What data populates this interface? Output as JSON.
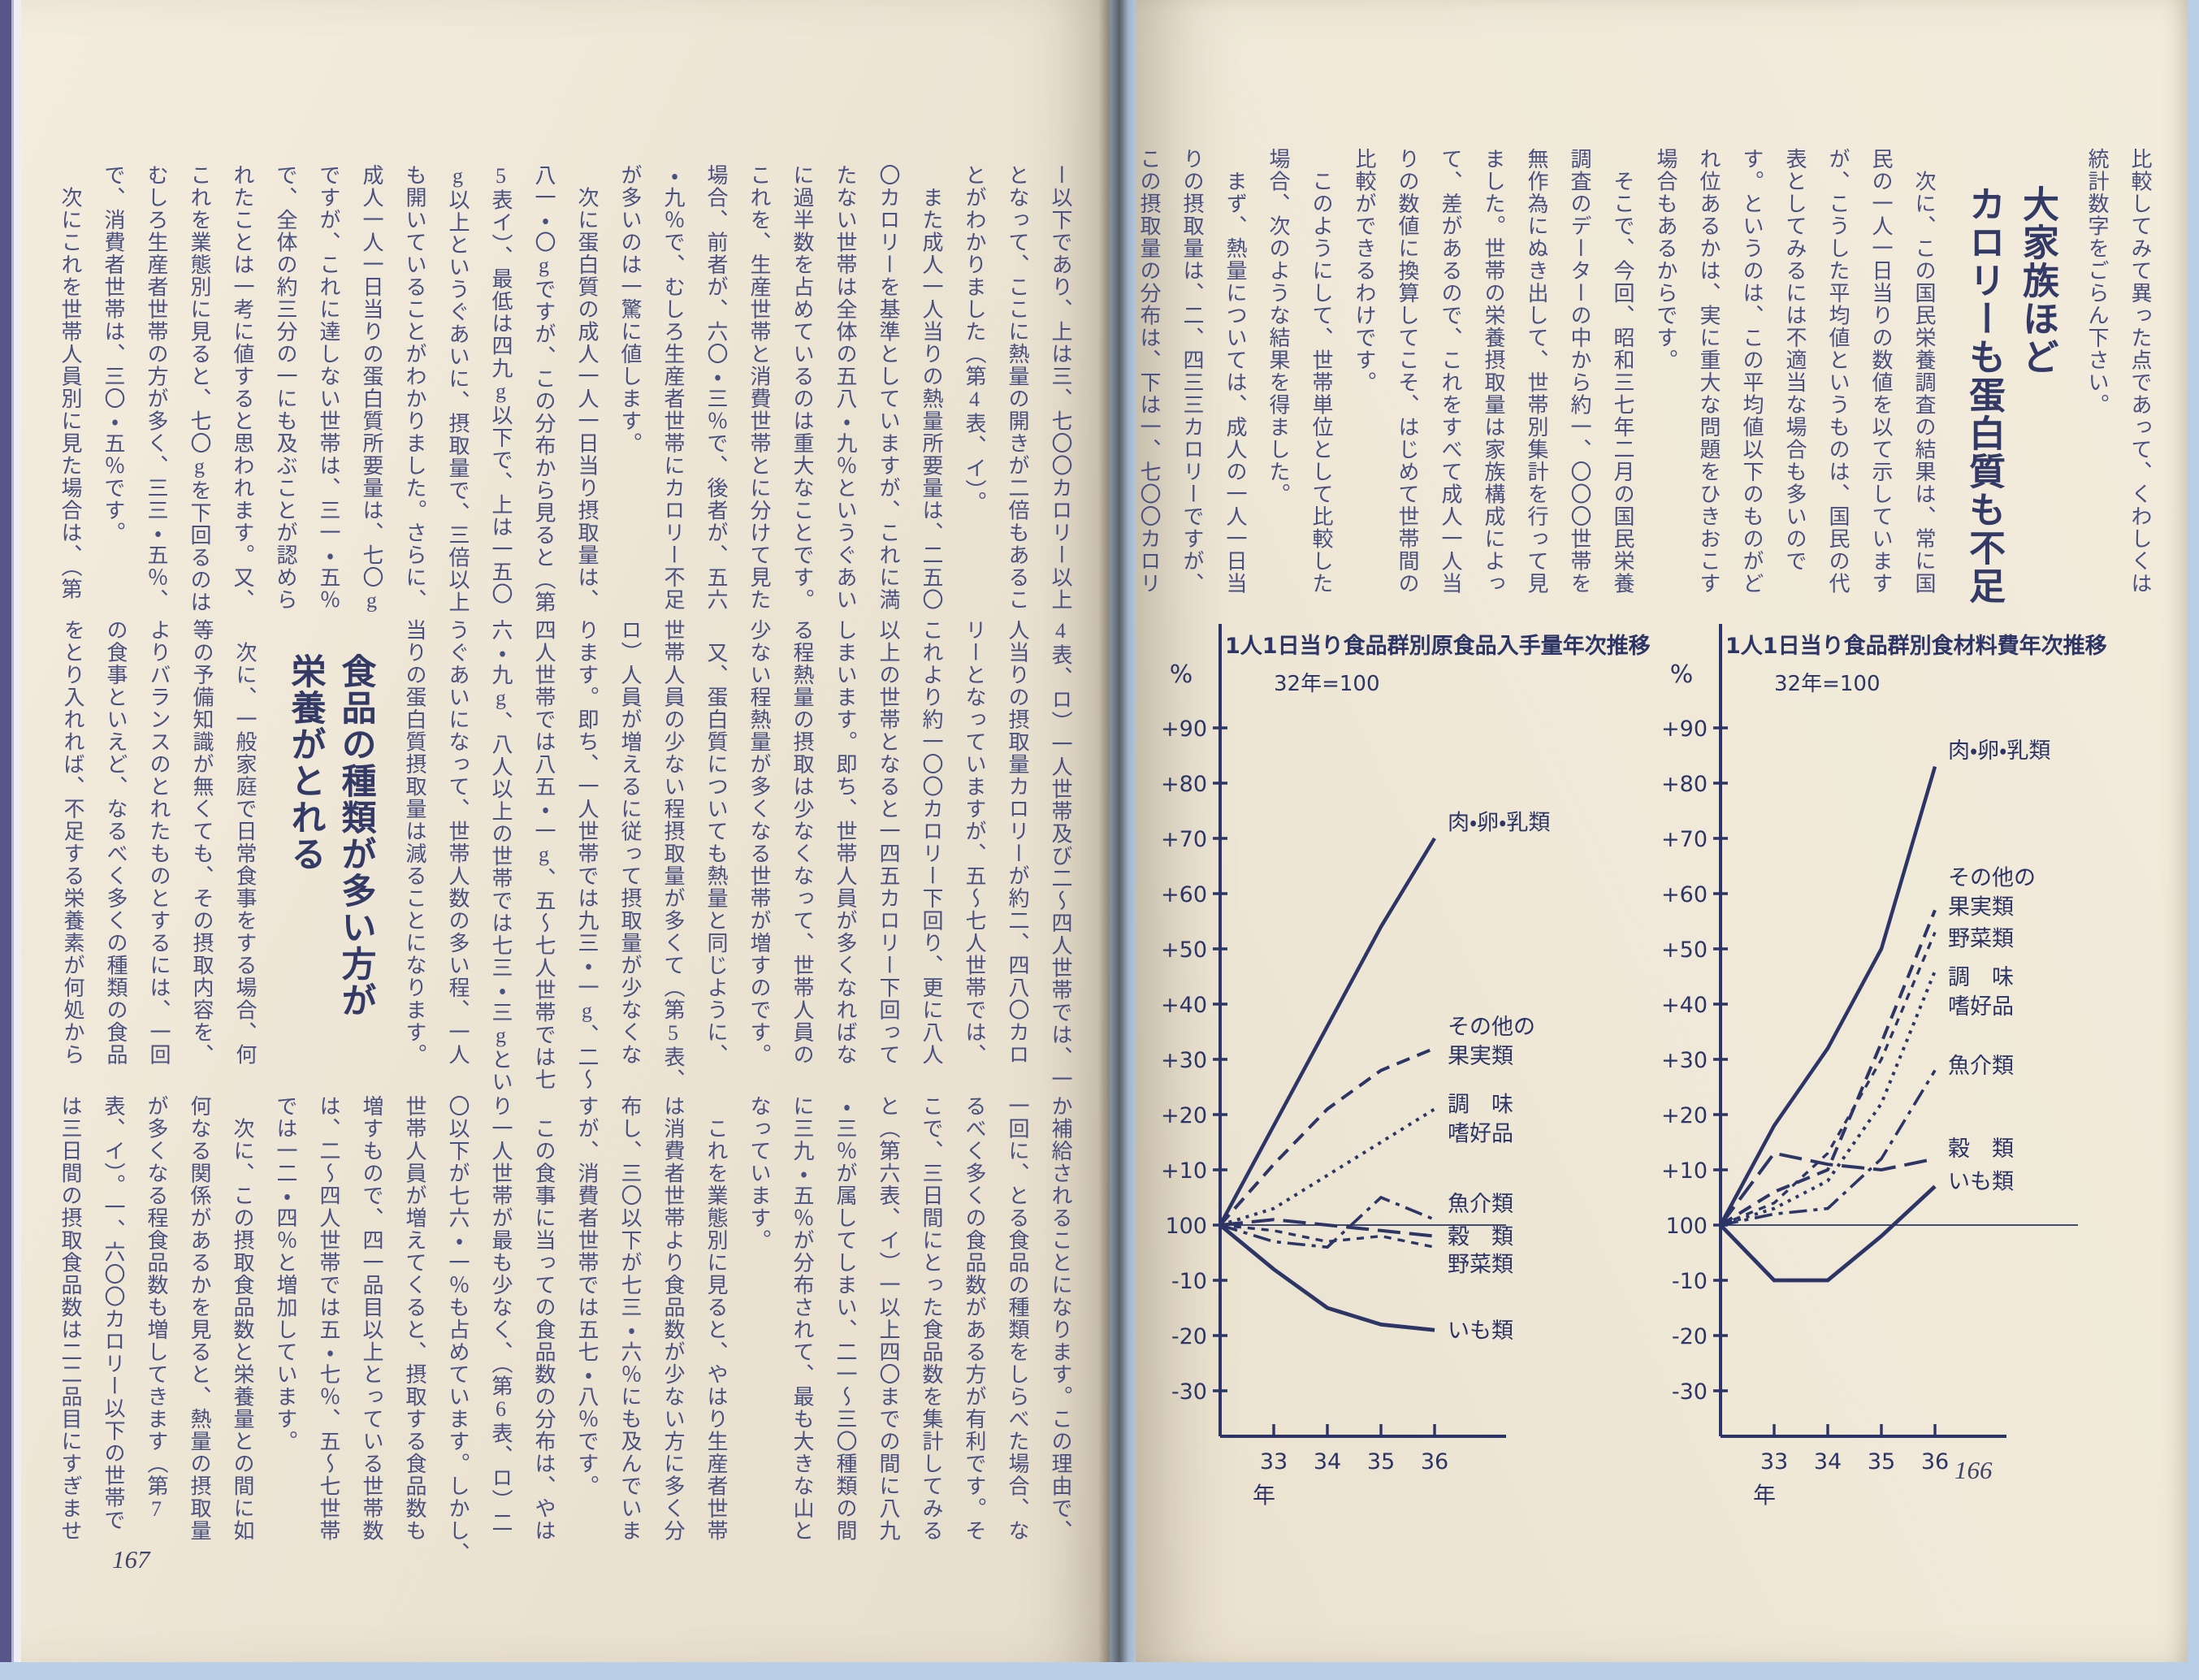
{
  "colors": {
    "paper": "#efe7d6",
    "ink_text": "#4a5181",
    "ink_heading": "#333a66",
    "ink_chart": "#2c3566",
    "backdrop_blue": "#b9cfe7",
    "spine_indigo": "#57568b"
  },
  "right_page": {
    "page_number": "166",
    "pre_columns": [
      "比較してみて異った点であって、くわしくは",
      "統計数字をごらん下さい。"
    ],
    "heading_lines": [
      "大家族ほど",
      "カロリーも蛋白質も不足"
    ],
    "post_columns": [
      "　次に、この国民栄養調査の結果は、常に国",
      "民の一人一日当りの数値を以て示しています",
      "が、こうした平均値というものは、国民の代",
      "表としてみるには不適当な場合も多いので",
      "す。というのは、この平均値以下のものがど",
      "れ位あるかは、実に重大な問題をひきおこす",
      "場合もあるからです。",
      "　そこで、今回、昭和三七年二月の国民栄養",
      "調査のデーターの中から約一、〇〇〇世帯を",
      "無作為にぬき出して、世帯別集計を行って見",
      "ました。世帯の栄養摂取量は家族構成によっ",
      "て、差があるので、これをすべて成人一人当",
      "りの数値に換算してこそ、はじめて世帯間の",
      "比較ができるわけです。",
      "　このようにして、世帯単位として比較した",
      "場合、次のような結果を得ました。",
      "　まず、熱量については、成人の一人一日当",
      "りの摂取量は、二、四三三カロリーですが、",
      "この摂取量の分布は、下は一、七〇〇カロリ"
    ],
    "marginalia_pencil_mark": "✕"
  },
  "left_page": {
    "page_number": "167",
    "band_top": {
      "columns": [
        "ー以下であり、上は三、七〇〇カロリー以上",
        "となって、ここに熱量の開きが二倍もあるこ",
        "とがわかりました（第4表、イ）。",
        "　また成人一人当りの熱量所要量は、二五〇",
        "〇カロリーを基準としていますが、これに満",
        "たない世帯は全体の五八・九％というぐあい",
        "に過半数を占めているのは重大なことです。",
        "これを、生産世帯と消費世帯とに分けて見た",
        "場合、前者が、六〇・三％で、後者が、五六",
        "・九％で、むしろ生産者世帯にカロリー不足",
        "が多いのは一驚に値します。",
        "　次に蛋白質の成人一人一日当り摂取量は、",
        "八一・〇gですが、この分布から見ると（第",
        "5表イ）、最低は四九g以下で、上は一五〇",
        "g以上というぐあいに、摂取量で、三倍以上",
        "も開いていることがわかりました。さらに、",
        "成人一人一日当りの蛋白質所要量は、七〇g",
        "ですが、これに達しない世帯は、三一・五％",
        "で、全体の約三分の一にも及ぶことが認めら",
        "れたことは一考に値すると思われます。又、",
        "これを業態別に見ると、七〇gを下回るのは",
        "むしろ生産者世帯の方が多く、三三・五％、",
        "で、消費者世帯は、三〇・五％です。",
        "　次にこれを世帯人員別に見た場合は、（第"
      ]
    },
    "band_middle": {
      "columns_a": [
        "4表、ロ）一人世帯及び二〜四人世帯では、一",
        "人当りの摂取量カロリーが約二、四八〇カロ",
        "リーとなっていますが、五〜七人世帯では、",
        "これより約一〇〇カロリー下回り、更に八人",
        "以上の世帯となると一四五カロリー下回って",
        "しまいます。即ち、世帯人員が多くなればな",
        "る程熱量の摂取は少なくなって、世帯人員の",
        "少ない程熱量が多くなる世帯が増すのです。",
        "　又、蛋白質についても熱量と同じように、",
        "世帯人員の少ない程摂取量が多くて（第5表、",
        "ロ）人員が増えるに従って摂取量が少なくな",
        "ります。即ち、一人世帯では九三・一g、二〜",
        "四人世帯では八五・一g、五〜七人世帯では七",
        "六・九g、八人以上の世帯では七三・三gとい",
        "うぐあいになって、世帯人数の多い程、一人",
        "当りの蛋白質摂取量は減ることになります。"
      ],
      "heading_lines": [
        "食品の種類が多い方が",
        "栄養がとれる"
      ],
      "columns_b": [
        "　次に、一般家庭で日常食事をする場合、何",
        "等の予備知識が無くても、その摂取内容を、",
        "よりバランスのとれたものとするには、一回",
        "の食事といえど、なるべく多くの種類の食品",
        "をとり入れれば、不足する栄養素が何処から"
      ]
    },
    "band_bottom": {
      "columns": [
        "か補給されることになります。この理由で、",
        "一回に、とる食品の種類をしらべた場合、な",
        "るべく多くの食品数がある方が有利です。そ",
        "こで、三日間にとった食品数を集計してみる",
        "と（第六表、イ）一以上四〇までの間に八九",
        "・三％が属してしまい、二一〜三〇種類の間",
        "に三九・五％が分布されて、最も大きな山と",
        "なっています。",
        "　これを業態別に見ると、やはり生産者世帯",
        "は消費者世帯より食品数が少ない方に多く分",
        "布し、三〇以下が七三・六％にも及んでいま",
        "すが、消費者世帯では五七・八％です。",
        "　この食事に当っての食品数の分布は、やは",
        "り一人世帯が最も少なく、（第6表、ロ）二",
        "〇以下が七六・一％も占めています。しかし、",
        "世帯人員が増えてくると、摂取する食品数も",
        "増すもので、四一品目以上とっている世帯数",
        "は、二〜四人世帯では五・七％、五〜七世帯",
        "では一二・四％と増加しています。",
        "　次に、この摂取食品数と栄養量との間に如",
        "何なる関係があるかを見ると、熱量の摂取量",
        "が多くなる程食品数も増してきます（第7",
        "表、イ）。一、六〇〇カロリー以下の世帯で",
        "は三日間の摂取食品数は二二品目にすぎませ"
      ]
    }
  },
  "chart_data": [
    {
      "type": "line",
      "title": "1人1日当り食品群別原食品入手量年次推移",
      "subtitle": "32年=100",
      "ylabel": "%",
      "xlabel": "年",
      "baseline_label": "100",
      "x": [
        32,
        33,
        34,
        35,
        36
      ],
      "x_tick_labels": [
        "33",
        "34",
        "35",
        "36"
      ],
      "y_tick_values": [
        90,
        80,
        70,
        60,
        50,
        40,
        30,
        20,
        10,
        0,
        -10,
        -20,
        -30
      ],
      "y_tick_labels": [
        "+90",
        "+80",
        "+70",
        "+60",
        "+50",
        "+40",
        "+30",
        "+20",
        "+10",
        "100",
        "-10",
        "-20",
        "-30"
      ],
      "ylim": [
        -38,
        97
      ],
      "grid": false,
      "legend_position": "right-of-line-ends",
      "series": [
        {
          "name": "肉・卵・乳類",
          "style": "solid",
          "weight": 4.5,
          "values": [
            0,
            18,
            36,
            54,
            70
          ],
          "label_lines": [
            "肉・卵・乳類"
          ],
          "label_y": 73
        },
        {
          "name": "その他の果実類",
          "style": "dash",
          "weight": 4,
          "values": [
            0,
            11,
            21,
            28,
            32
          ],
          "label_lines": [
            "その他の",
            "果実類"
          ],
          "label_y": 36
        },
        {
          "name": "調味嗜好品",
          "style": "dot",
          "weight": 4,
          "values": [
            0,
            3,
            9,
            15,
            21
          ],
          "label_lines": [
            "調　味",
            "嗜好品"
          ],
          "label_y": 22
        },
        {
          "name": "魚介類",
          "style": "dashdot",
          "weight": 3.6,
          "values": [
            0,
            -3,
            -4,
            5,
            1
          ],
          "label_lines": [
            "魚介類"
          ],
          "label_y": 4
        },
        {
          "name": "穀類",
          "style": "longdash",
          "weight": 4,
          "values": [
            0,
            1,
            0,
            -1,
            -2
          ],
          "label_lines": [
            "穀　類"
          ],
          "label_y": -2
        },
        {
          "name": "野菜類",
          "style": "shortdash",
          "weight": 3.4,
          "values": [
            0,
            -1,
            -3,
            -2,
            -4
          ],
          "label_lines": [
            "野菜類"
          ],
          "label_y": -7
        },
        {
          "name": "いも類",
          "style": "solid",
          "weight": 4.8,
          "values": [
            0,
            -8,
            -15,
            -18,
            -19
          ],
          "label_lines": [
            "いも類"
          ],
          "label_y": -19
        }
      ]
    },
    {
      "type": "line",
      "title": "1人1日当り食品群別食材料費年次推移",
      "subtitle": "32年=100",
      "ylabel": "%",
      "xlabel": "年",
      "baseline_label": "100",
      "x": [
        32,
        33,
        34,
        35,
        36
      ],
      "x_tick_labels": [
        "33",
        "34",
        "35",
        "36"
      ],
      "y_tick_values": [
        90,
        80,
        70,
        60,
        50,
        40,
        30,
        20,
        10,
        0,
        -10,
        -20,
        -30
      ],
      "y_tick_labels": [
        "+90",
        "+80",
        "+70",
        "+60",
        "+50",
        "+40",
        "+30",
        "+20",
        "+10",
        "100",
        "-10",
        "-20",
        "-30"
      ],
      "ylim": [
        -38,
        97
      ],
      "grid": false,
      "legend_position": "right-of-line-ends",
      "series": [
        {
          "name": "肉・卵・乳類",
          "style": "solid",
          "weight": 4.5,
          "values": [
            0,
            18,
            32,
            50,
            83
          ],
          "label_lines": [
            "肉・卵・乳類"
          ],
          "label_y": 86
        },
        {
          "name": "その他の果実類",
          "style": "dash",
          "weight": 4,
          "values": [
            0,
            6,
            10,
            33,
            57
          ],
          "label_lines": [
            "その他の",
            "果実類"
          ],
          "label_y": 63
        },
        {
          "name": "野菜類",
          "style": "shortdash",
          "weight": 3.4,
          "values": [
            0,
            4,
            13,
            30,
            53
          ],
          "label_lines": [
            "野菜類"
          ],
          "label_y": 52
        },
        {
          "name": "調味嗜好品",
          "style": "dot",
          "weight": 4,
          "values": [
            0,
            3,
            8,
            22,
            46
          ],
          "label_lines": [
            "調　味",
            "嗜好品"
          ],
          "label_y": 45
        },
        {
          "name": "魚介類",
          "style": "dashdot",
          "weight": 3.6,
          "values": [
            0,
            2,
            3,
            12,
            28
          ],
          "label_lines": [
            "魚介類"
          ],
          "label_y": 29
        },
        {
          "name": "穀類",
          "style": "longdash",
          "weight": 4,
          "values": [
            0,
            13,
            11,
            10,
            12
          ],
          "label_lines": [
            "穀　類"
          ],
          "label_y": 14
        },
        {
          "name": "いも類",
          "style": "solid",
          "weight": 4.8,
          "values": [
            0,
            -10,
            -10,
            -2,
            7
          ],
          "label_lines": [
            "いも類"
          ],
          "label_y": 8
        }
      ]
    }
  ]
}
